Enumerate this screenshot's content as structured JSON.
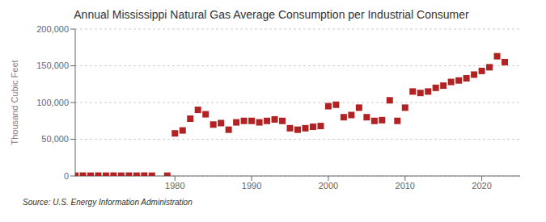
{
  "chart_data": {
    "type": "scatter",
    "title": "Annual Mississippi Natural Gas Average Consumption per Industrial Consumer",
    "y_label": "Thousand Cubic Feet",
    "annotations": [
      "Source: U.S. Energy Information Administration"
    ],
    "color": "#b22222",
    "marker": "square",
    "grid": true,
    "x": [
      1967,
      1968,
      1969,
      1970,
      1971,
      1972,
      1973,
      1974,
      1975,
      1976,
      1977,
      1979,
      1980,
      1981,
      1982,
      1983,
      1984,
      1985,
      1986,
      1987,
      1988,
      1989,
      1990,
      1991,
      1992,
      1993,
      1994,
      1995,
      1996,
      1997,
      1998,
      1999,
      2000,
      2001,
      2002,
      2003,
      2004,
      2005,
      2006,
      2007,
      2008,
      2009,
      2010,
      2011,
      2012,
      2013,
      2014,
      2015,
      2016,
      2017,
      2018,
      2019,
      2020,
      2021,
      2022,
      2023
    ],
    "values": [
      400,
      500,
      400,
      500,
      400,
      500,
      400,
      500,
      400,
      500,
      400,
      400,
      58000,
      62000,
      78000,
      90000,
      84000,
      70000,
      72000,
      63000,
      73000,
      75000,
      75000,
      73000,
      75000,
      77000,
      75000,
      65000,
      63000,
      65000,
      67000,
      68000,
      95000,
      97000,
      80000,
      83000,
      93000,
      80000,
      75000,
      76000,
      103000,
      75000,
      93000,
      115000,
      113000,
      115000,
      120000,
      123000,
      128000,
      130000,
      133000,
      138000,
      143000,
      148000,
      163000,
      155000
    ],
    "xlim": [
      1967,
      2025
    ],
    "xticks": [
      1980,
      1990,
      2000,
      2010,
      2020
    ],
    "ylim": [
      0,
      200000
    ],
    "yticks": [
      0,
      {
        "value": 50000,
        "label": "50,000"
      },
      {
        "value": 100000,
        "label": "100,000"
      },
      {
        "value": 150000,
        "label": "150,000"
      },
      {
        "value": 200000,
        "label": "200,000"
      }
    ]
  }
}
